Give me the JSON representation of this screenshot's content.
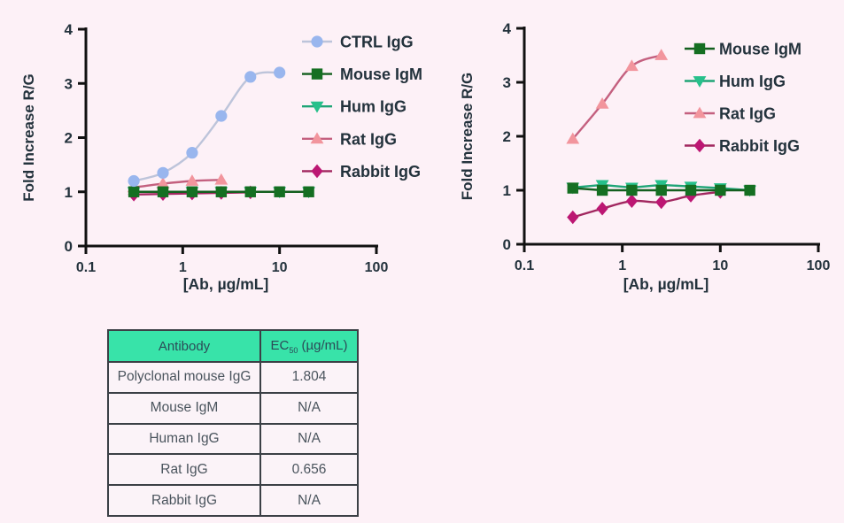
{
  "page": {
    "background": "#fdf1f7",
    "axis_color": "#111111",
    "text_color": "#23323c"
  },
  "chart_data": [
    {
      "type": "line",
      "title": "",
      "xlabel": "[Ab, µg/mL]",
      "ylabel": "Fold Increase R/G",
      "xscale": "log",
      "xlim": [
        0.1,
        100
      ],
      "ylim": [
        0,
        4
      ],
      "xticks": [
        "0.1",
        "1",
        "10",
        "100"
      ],
      "yticks": [
        "0",
        "1",
        "2",
        "3",
        "4"
      ],
      "grid": false,
      "legend_position": "upper-right",
      "series": [
        {
          "name": "CTRL IgG",
          "marker": "circle",
          "marker_color": "#99b6ee",
          "line_color": "#bdc4da",
          "smooth": true,
          "z": 5,
          "x": [
            0.3125,
            0.625,
            1.25,
            2.5,
            5,
            10
          ],
          "y": [
            1.2,
            1.35,
            1.72,
            2.4,
            3.12,
            3.2
          ]
        },
        {
          "name": "Mouse IgM",
          "marker": "square",
          "marker_color": "#156f22",
          "line_color": "#135f1e",
          "smooth": false,
          "z": 4,
          "x": [
            0.3125,
            0.625,
            1.25,
            2.5,
            5,
            10,
            20
          ],
          "y": [
            1.0,
            1.0,
            1.0,
            1.0,
            1.0,
            1.0,
            1.0
          ]
        },
        {
          "name": "Hum IgG",
          "marker": "triangle-down",
          "marker_color": "#27c08b",
          "line_color": "#1fa577",
          "smooth": false,
          "z": 1,
          "x": [
            0.3125,
            0.625,
            1.25,
            2.5,
            5,
            10,
            20
          ],
          "y": [
            1.0,
            1.0,
            1.0,
            1.0,
            1.0,
            1.0,
            1.0
          ]
        },
        {
          "name": "Rat IgG",
          "marker": "triangle-up",
          "marker_color": "#f2959d",
          "line_color": "#c4607f",
          "smooth": true,
          "z": 3,
          "x": [
            0.3125,
            0.625,
            1.25,
            2.5
          ],
          "y": [
            1.08,
            1.15,
            1.2,
            1.22
          ]
        },
        {
          "name": "Rabbit IgG",
          "marker": "diamond",
          "marker_color": "#bc1773",
          "line_color": "#a1275f",
          "smooth": false,
          "z": 2,
          "x": [
            0.3125,
            0.625,
            1.25,
            2.5,
            5
          ],
          "y": [
            0.95,
            0.96,
            0.97,
            0.98,
            0.99
          ]
        }
      ]
    },
    {
      "type": "line",
      "title": "",
      "xlabel": "[Ab, µg/mL]",
      "ylabel": "Fold Increase R/G",
      "xscale": "log",
      "xlim": [
        0.1,
        100
      ],
      "ylim": [
        0,
        4
      ],
      "xticks": [
        "0.1",
        "1",
        "10",
        "100"
      ],
      "yticks": [
        "0",
        "1",
        "2",
        "3",
        "4"
      ],
      "grid": false,
      "legend_position": "upper-right",
      "series": [
        {
          "name": "Mouse IgM",
          "marker": "square",
          "marker_color": "#156f22",
          "line_color": "#135f1e",
          "smooth": false,
          "z": 3,
          "x": [
            0.3125,
            0.625,
            1.25,
            2.5,
            5,
            10,
            20
          ],
          "y": [
            1.04,
            1.0,
            1.0,
            1.0,
            1.0,
            1.0,
            1.0
          ]
        },
        {
          "name": "Hum IgG",
          "marker": "triangle-down",
          "marker_color": "#27c08b",
          "line_color": "#1fa577",
          "smooth": false,
          "z": 2,
          "x": [
            0.3125,
            0.625,
            1.25,
            2.5,
            5,
            10,
            20
          ],
          "y": [
            1.05,
            1.1,
            1.05,
            1.1,
            1.07,
            1.04,
            1.0
          ]
        },
        {
          "name": "Rat IgG",
          "marker": "triangle-up",
          "marker_color": "#f2959d",
          "line_color": "#c4607f",
          "smooth": true,
          "z": 4,
          "x": [
            0.3125,
            0.625,
            1.25,
            2.5
          ],
          "y": [
            1.95,
            2.6,
            3.3,
            3.5
          ]
        },
        {
          "name": "Rabbit IgG",
          "marker": "diamond",
          "marker_color": "#bc1773",
          "line_color": "#a1275f",
          "smooth": true,
          "z": 1,
          "x": [
            0.3125,
            0.625,
            1.25,
            2.5,
            5,
            10
          ],
          "y": [
            0.5,
            0.66,
            0.8,
            0.78,
            0.9,
            0.97
          ]
        }
      ]
    }
  ],
  "table": {
    "headers": {
      "antibody": "Antibody",
      "ec_main": "EC",
      "ec_sub": "50",
      "ec_unit": " (µg/mL)"
    },
    "rows": [
      {
        "antibody": "Polyclonal mouse IgG",
        "ec50": "1.804"
      },
      {
        "antibody": "Mouse IgM",
        "ec50": "N/A"
      },
      {
        "antibody": "Human IgG",
        "ec50": "N/A"
      },
      {
        "antibody": "Rat IgG",
        "ec50": "0.656"
      },
      {
        "antibody": "Rabbit IgG",
        "ec50": "N/A"
      }
    ]
  }
}
